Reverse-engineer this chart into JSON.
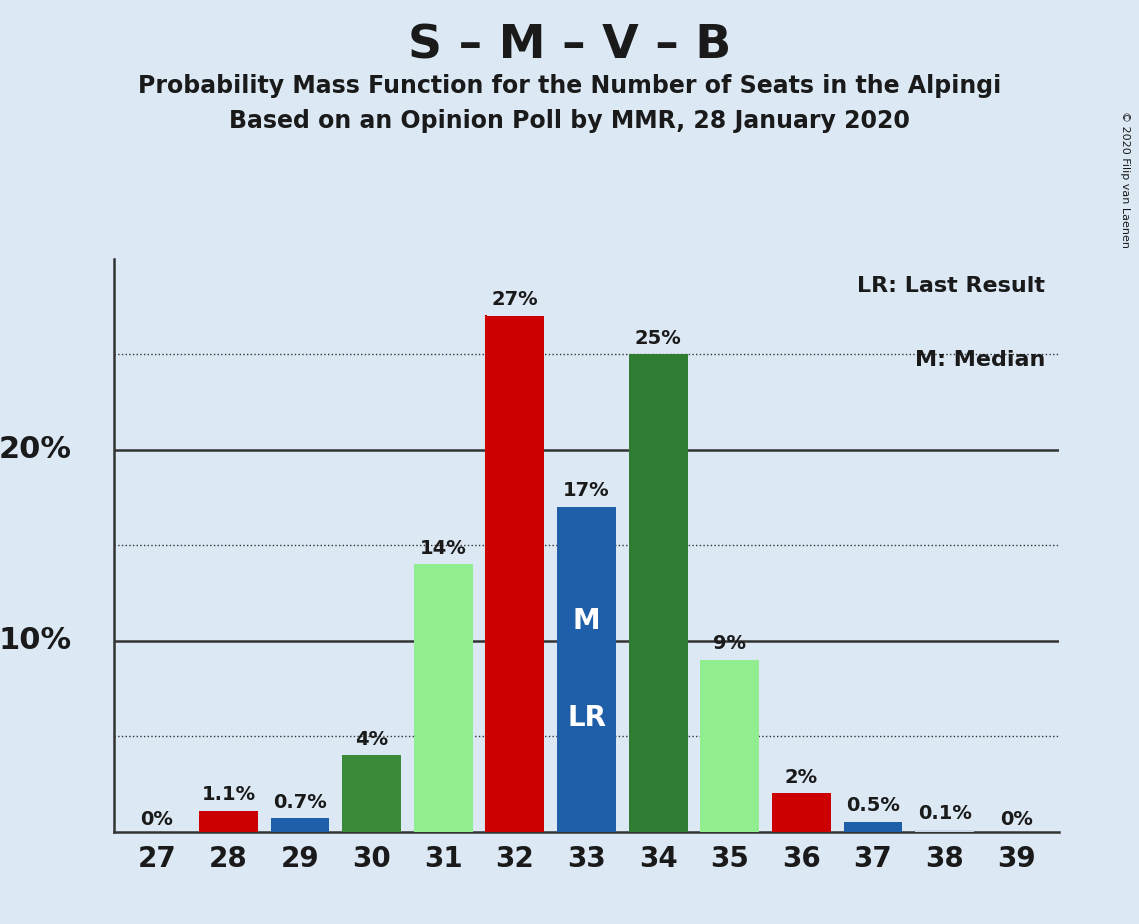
{
  "title_main": "S – M – V – B",
  "title_sub1": "Probability Mass Function for the Number of Seats in the Alpingi",
  "title_sub2": "Based on an Opinion Poll by MMR, 28 January 2020",
  "copyright": "© 2020 Filip van Laenen",
  "seats": [
    27,
    28,
    29,
    30,
    31,
    32,
    33,
    34,
    35,
    36,
    37,
    38,
    39
  ],
  "values": [
    0.0,
    1.1,
    0.7,
    4.0,
    14.0,
    27.0,
    17.0,
    25.0,
    9.0,
    2.0,
    0.5,
    0.1,
    0.0
  ],
  "bar_colors": [
    "#c8d8e8",
    "#cc0000",
    "#1f5ea8",
    "#3a8a3a",
    "#90ee90",
    "#cc0000",
    "#1f5ea8",
    "#2e7d32",
    "#90ee90",
    "#cc0000",
    "#1f5ea8",
    "#c8d8e8",
    "#c8d8e8"
  ],
  "label_annotations": [
    {
      "seat": 27,
      "value": 0.0,
      "label": "0%"
    },
    {
      "seat": 28,
      "value": 1.1,
      "label": "1.1%"
    },
    {
      "seat": 29,
      "value": 0.7,
      "label": "0.7%"
    },
    {
      "seat": 30,
      "value": 4.0,
      "label": "4%"
    },
    {
      "seat": 31,
      "value": 14.0,
      "label": "14%"
    },
    {
      "seat": 32,
      "value": 27.0,
      "label": "27%"
    },
    {
      "seat": 33,
      "value": 17.0,
      "label": "17%"
    },
    {
      "seat": 34,
      "value": 25.0,
      "label": "25%"
    },
    {
      "seat": 35,
      "value": 9.0,
      "label": "9%"
    },
    {
      "seat": 36,
      "value": 2.0,
      "label": "2%"
    },
    {
      "seat": 37,
      "value": 0.5,
      "label": "0.5%"
    },
    {
      "seat": 38,
      "value": 0.1,
      "label": "0.1%"
    },
    {
      "seat": 39,
      "value": 0.0,
      "label": "0%"
    }
  ],
  "legend_lr_text": "LR: Last Result",
  "legend_m_text": "M: Median",
  "ylim": [
    0,
    30
  ],
  "background_color": "#dce9f5",
  "text_color": "#1a1a1a",
  "title_main_fontsize": 34,
  "title_sub_fontsize": 17,
  "label_fontsize": 14,
  "legend_fontsize": 16,
  "tick_fontsize": 20,
  "ylabel_fontsize": 22
}
